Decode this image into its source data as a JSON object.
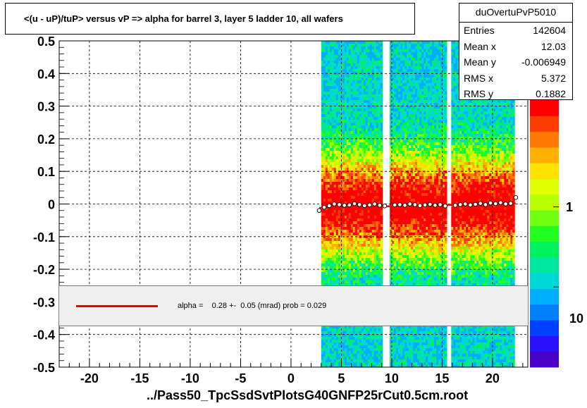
{
  "title": "<(u - uP)/tuP> versus   vP => alpha for barrel 3, layer 5 ladder 10, all wafers",
  "xtitle": "../Pass50_TpcSsdSvtPlotsG40GNFP25rCut0.5cm.root",
  "stats": {
    "name": "duOvertuPvP5010",
    "rows": [
      {
        "label": "Entries",
        "value": "142604"
      },
      {
        "label": "Mean x",
        "value": "12.03"
      },
      {
        "label": "Mean y",
        "value": "-0.006949"
      },
      {
        "label": "RMS x",
        "value": "5.372"
      },
      {
        "label": "RMS y",
        "value": "0.1882"
      }
    ]
  },
  "fit_legend": "alpha =    0.28 +-  0.05 (mrad) prob = 0.029",
  "colorbar_labels": [
    "1",
    "10"
  ],
  "chart_data": {
    "type": "heatmap",
    "title": "<(u - uP)/tuP> versus   vP => alpha for barrel 3, layer 5 ladder 10, all wafers",
    "xlabel": "../Pass50_TpcSsdSvtPlotsG40GNFP25rCut0.5cm.root",
    "ylabel": "",
    "xlim": [
      -23,
      23.5
    ],
    "ylim": [
      -0.5,
      0.5
    ],
    "xticks": [
      -20,
      -15,
      -10,
      -5,
      0,
      5,
      10,
      15,
      20
    ],
    "yticks": [
      -0.5,
      -0.4,
      -0.3,
      -0.2,
      -0.1,
      0,
      0.1,
      0.2,
      0.3,
      0.4,
      0.5
    ],
    "grid": true,
    "occupied_x_bands": [
      [
        3.0,
        9.0
      ],
      [
        9.8,
        15.4
      ],
      [
        15.9,
        22.0
      ]
    ],
    "profile_points": {
      "x": [
        2.8,
        3.3,
        3.8,
        4.3,
        4.8,
        5.3,
        5.8,
        6.3,
        6.8,
        7.3,
        7.8,
        8.3,
        8.8,
        9.3,
        10.3,
        10.8,
        11.3,
        11.8,
        12.3,
        12.8,
        13.3,
        13.8,
        14.3,
        14.8,
        15.3,
        16.3,
        16.8,
        17.3,
        17.8,
        18.3,
        18.8,
        19.3,
        19.8,
        20.3,
        20.8,
        21.3,
        21.8,
        22.3
      ],
      "y": [
        -0.02,
        -0.01,
        -0.005,
        0.0,
        -0.002,
        -0.004,
        -0.003,
        0.001,
        -0.002,
        -0.005,
        -0.003,
        0.0,
        -0.004,
        -0.006,
        -0.003,
        -0.002,
        -0.004,
        0.0,
        -0.002,
        -0.005,
        -0.003,
        -0.001,
        -0.004,
        -0.002,
        -0.006,
        -0.004,
        -0.002,
        0.0,
        -0.003,
        -0.001,
        0.002,
        -0.002,
        0.003,
        0.001,
        0.004,
        0.0,
        0.002,
        0.02
      ]
    },
    "fit_line": {
      "x": [
        2.8,
        22.3
      ],
      "y": [
        -0.012,
        0.002
      ]
    },
    "colorbar": {
      "scale": "log",
      "labels": [
        "1",
        "10"
      ]
    }
  }
}
